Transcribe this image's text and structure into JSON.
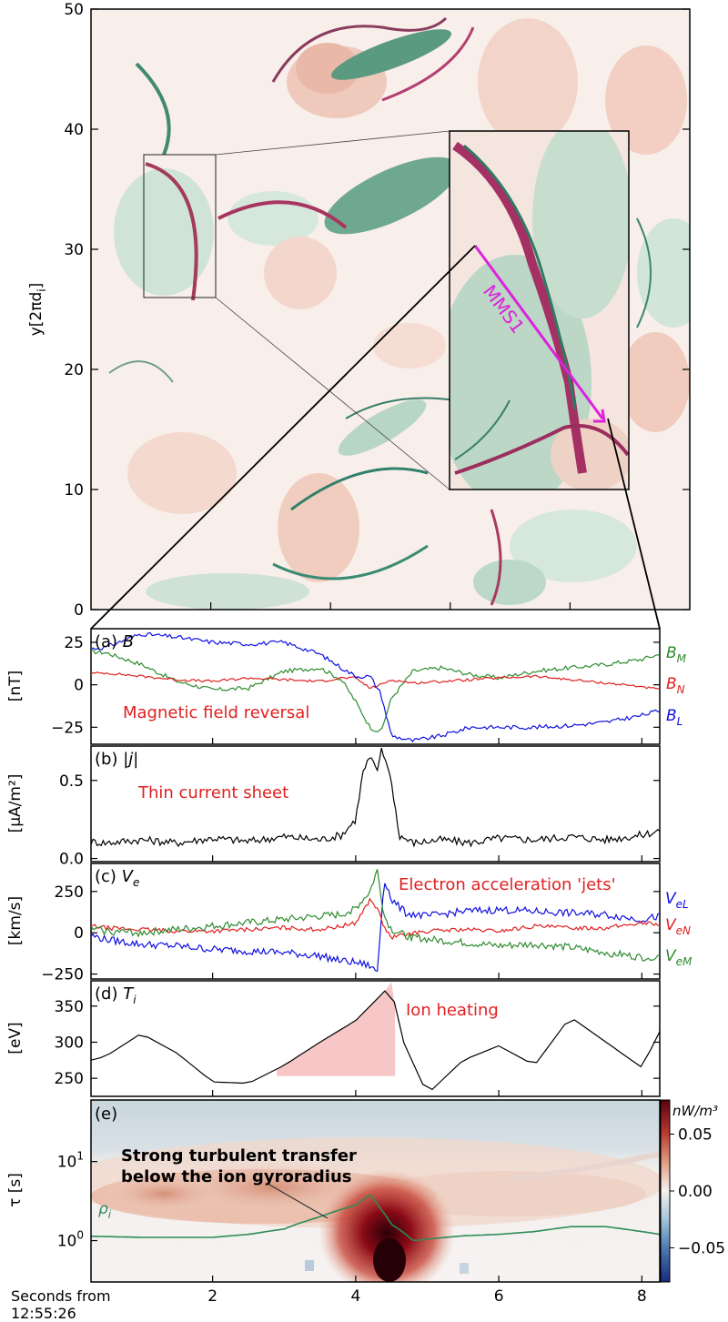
{
  "colors": {
    "green": "#2e8b2e",
    "red": "#e02020",
    "blue": "#1010e0",
    "magenta": "#dd22dd",
    "fill": "#f7c6c6"
  },
  "top_panel": {
    "ylabel": "y[2πd",
    "ylabel_sub": "i",
    "ylabel_tail": "]",
    "yticks": [
      "0",
      "10",
      "20",
      "30",
      "40",
      "50"
    ],
    "trajectory_label": "MMS1"
  },
  "panel_a": {
    "tag": "(a) ",
    "var": "B",
    "ylabel": "[nT]",
    "yticks": [
      "25",
      "0",
      "−25"
    ],
    "annotation": "Magnetic field reversal",
    "legend": [
      {
        "main": "B",
        "sub": "M",
        "color": "#2e8b2e"
      },
      {
        "main": "B",
        "sub": "N",
        "color": "#e02020"
      },
      {
        "main": "B",
        "sub": "L",
        "color": "#1010e0"
      }
    ]
  },
  "panel_b": {
    "tag": "(b) ",
    "var": "|j|",
    "ylabel": "[μA/m²]",
    "yticks": [
      "0.5",
      "0.0"
    ],
    "annotation": "Thin current sheet"
  },
  "panel_c": {
    "tag": "(c) ",
    "var": "V",
    "var_sub": "e",
    "ylabel": "[km/s]",
    "yticks": [
      "250",
      "0",
      "−250"
    ],
    "annotation": "Electron acceleration 'jets'",
    "legend": [
      {
        "main": "V",
        "sub": "eL",
        "color": "#1010e0"
      },
      {
        "main": "V",
        "sub": "eN",
        "color": "#e02020"
      },
      {
        "main": "V",
        "sub": "eM",
        "color": "#2e8b2e"
      }
    ]
  },
  "panel_d": {
    "tag": "(d) ",
    "var": "T",
    "var_sub": "i",
    "ylabel": "[eV]",
    "yticks": [
      "350",
      "300",
      "250"
    ],
    "annotation": "Ion heating"
  },
  "panel_e": {
    "tag": "(e)",
    "ylabel": "τ [s]",
    "yticks": [
      "10",
      "10"
    ],
    "ytick_exps": [
      "1",
      "0"
    ],
    "annotation_line1": "Strong turbulent transfer",
    "annotation_line2": "below the ion gyroradius",
    "rho_label": "ρ",
    "rho_sub": "i",
    "colorbar_unit": "nW/m³",
    "colorbar_ticks": [
      "0.05",
      "0.00",
      "−0.05"
    ]
  },
  "xaxis": {
    "ticks": [
      "2",
      "4",
      "6",
      "8"
    ],
    "label_line1": "Seconds from",
    "label_line2": "12:55:26"
  },
  "chart_data": [
    {
      "type": "line",
      "title": "(a) B",
      "ylabel": "[nT]",
      "ylim": [
        -35,
        33
      ],
      "x": [
        0.0,
        0.5,
        1.0,
        1.5,
        2.0,
        2.5,
        3.0,
        3.5,
        3.8,
        4.0,
        4.2,
        4.35,
        4.5,
        4.8,
        5.2,
        5.6,
        6.0,
        6.5,
        7.0,
        7.5,
        8.0,
        8.25
      ],
      "series": [
        {
          "name": "BM",
          "values": [
            20,
            19,
            12,
            2,
            -3,
            -2,
            8,
            10,
            3,
            -10,
            -25,
            -28,
            -8,
            8,
            10,
            6,
            4,
            8,
            10,
            12,
            15,
            18
          ]
        },
        {
          "name": "BN",
          "values": [
            6,
            7,
            5,
            3,
            2,
            4,
            3,
            2,
            4,
            4,
            -2,
            0,
            3,
            1,
            2,
            3,
            4,
            5,
            3,
            1,
            -1,
            -3
          ]
        },
        {
          "name": "BL",
          "values": [
            20,
            22,
            30,
            28,
            25,
            24,
            25,
            18,
            10,
            5,
            5,
            -5,
            -30,
            -33,
            -30,
            -25,
            -25,
            -25,
            -24,
            -22,
            -18,
            -15
          ]
        }
      ]
    },
    {
      "type": "line",
      "title": "(b) |j|",
      "ylabel": "[μA/m²]",
      "ylim": [
        -0.02,
        0.72
      ],
      "x": [
        0.0,
        0.5,
        1.0,
        1.5,
        2.0,
        2.5,
        3.0,
        3.5,
        3.8,
        4.0,
        4.1,
        4.2,
        4.3,
        4.35,
        4.45,
        4.55,
        4.6,
        4.8,
        5.2,
        5.6,
        6.0,
        6.5,
        7.0,
        7.5,
        8.0,
        8.25
      ],
      "series": [
        {
          "name": "|j|",
          "values": [
            0.12,
            0.1,
            0.12,
            0.1,
            0.13,
            0.11,
            0.14,
            0.12,
            0.15,
            0.25,
            0.55,
            0.65,
            0.55,
            0.7,
            0.6,
            0.35,
            0.15,
            0.1,
            0.12,
            0.1,
            0.13,
            0.12,
            0.14,
            0.12,
            0.15,
            0.18
          ]
        }
      ]
    },
    {
      "type": "line",
      "title": "(c) Ve",
      "ylabel": "[km/s]",
      "ylim": [
        -280,
        420
      ],
      "x": [
        0.0,
        0.5,
        1.0,
        1.5,
        2.0,
        2.5,
        3.0,
        3.5,
        3.8,
        4.0,
        4.2,
        4.3,
        4.4,
        4.5,
        4.7,
        5.0,
        5.5,
        6.0,
        6.5,
        7.0,
        7.5,
        8.0,
        8.25
      ],
      "series": [
        {
          "name": "VeL",
          "values": [
            20,
            -40,
            -70,
            -80,
            -100,
            -110,
            -120,
            -140,
            -170,
            -180,
            -200,
            -240,
            330,
            200,
            120,
            100,
            130,
            140,
            130,
            120,
            110,
            80,
            100
          ]
        },
        {
          "name": "VeN",
          "values": [
            60,
            30,
            20,
            10,
            10,
            20,
            30,
            20,
            40,
            60,
            200,
            150,
            30,
            -30,
            -10,
            10,
            20,
            10,
            40,
            30,
            30,
            60,
            50
          ]
        },
        {
          "name": "VeM",
          "values": [
            50,
            10,
            0,
            20,
            40,
            60,
            80,
            100,
            110,
            150,
            250,
            380,
            100,
            20,
            -20,
            -40,
            -60,
            -80,
            -70,
            -90,
            -120,
            -150,
            -140
          ]
        }
      ]
    },
    {
      "type": "area",
      "title": "(d) Ti",
      "ylabel": "[eV]",
      "ylim": [
        225,
        385
      ],
      "x": [
        0.0,
        0.5,
        1.0,
        1.5,
        2.0,
        2.5,
        3.0,
        3.5,
        4.0,
        4.4,
        4.5,
        4.6,
        5.0,
        5.5,
        6.0,
        6.5,
        7.0,
        7.5,
        8.0,
        8.25
      ],
      "series": [
        {
          "name": "Ti",
          "values": [
            268,
            280,
            312,
            285,
            245,
            243,
            268,
            300,
            330,
            370,
            383,
            315,
            228,
            275,
            295,
            268,
            335,
            300,
            265,
            315
          ]
        }
      ],
      "highlight": {
        "label": "Ion heating",
        "from": 2.9,
        "to": 4.55,
        "baseline": 253
      }
    },
    {
      "type": "heatmap",
      "title": "(e)",
      "ylabel": "τ [s]",
      "yscale": "log",
      "ylim": [
        0.3,
        60
      ],
      "xlim": [
        0.0,
        8.25
      ],
      "colorbar": {
        "label": "nW/m³",
        "range": [
          -0.08,
          0.08
        ]
      },
      "series": [
        {
          "name": "ρi",
          "x": [
            0.0,
            1.0,
            2.0,
            2.5,
            3.0,
            3.5,
            4.0,
            4.2,
            4.35,
            4.5,
            4.8,
            5.5,
            6.0,
            6.5,
            7.0,
            7.5,
            8.0,
            8.25
          ],
          "values": [
            1.15,
            1.1,
            1.1,
            1.2,
            1.4,
            2.0,
            2.8,
            3.8,
            2.5,
            1.6,
            1.0,
            1.15,
            1.2,
            1.3,
            1.5,
            1.5,
            1.3,
            1.2
          ]
        }
      ]
    }
  ]
}
